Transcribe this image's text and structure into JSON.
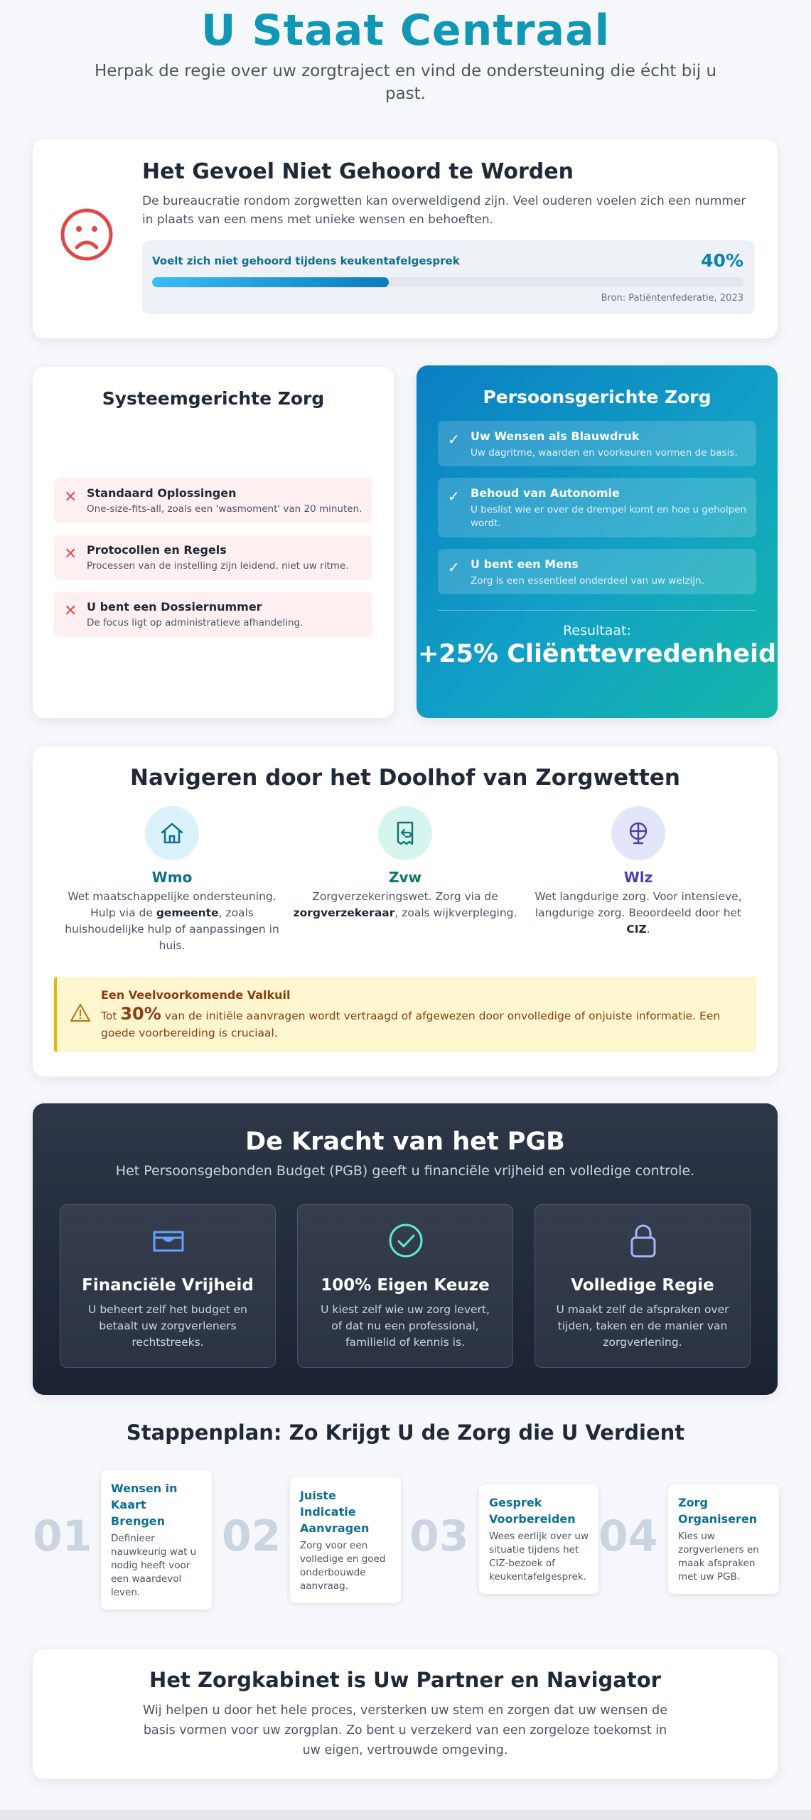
{
  "header": {
    "title": "U Staat Centraal",
    "subtitle": "Herpak de regie over uw zorgtraject en vind de ondersteuning die écht bij u past."
  },
  "problem": {
    "icon": "sad-face-icon",
    "title": "Het Gevoel Niet Gehoord te Worden",
    "text": "De bureaucratie rondom zorgwetten kan overweldigend zijn. Veel ouderen voelen zich een nummer in plaats van een mens met unieke wensen en behoeften.",
    "stat_label": "Voelt zich niet gehoord tijdens keukentafelgesprek",
    "stat_value": "40%",
    "stat_fraction": 0.4,
    "source": "Bron: Patiëntenfederatie, 2023"
  },
  "system": {
    "title": "Systeemgerichte Zorg",
    "items": [
      {
        "title": "Standaard Oplossingen",
        "desc": "One-size-fits-all, zoals een 'wasmoment' van 20 minuten."
      },
      {
        "title": "Protocollen en Regels",
        "desc": "Processen van de instelling zijn leidend, niet uw ritme."
      },
      {
        "title": "U bent een Dossiernummer",
        "desc": "De focus ligt op administratieve afhandeling."
      }
    ]
  },
  "person": {
    "title": "Persoonsgerichte Zorg",
    "items": [
      {
        "title": "Uw Wensen als Blauwdruk",
        "desc": "Uw dagritme, waarden en voorkeuren vormen de basis."
      },
      {
        "title": "Behoud van Autonomie",
        "desc": "U beslist wie er over de drempel komt en hoe u geholpen wordt."
      },
      {
        "title": "U bent een Mens",
        "desc": "Zorg is een essentieel onderdeel van uw welzijn."
      }
    ],
    "result_label": "Resultaat:",
    "result_value": "+25% Cliënttevredenheid"
  },
  "laws": {
    "title": "Navigeren door het Doolhof van Zorgwetten",
    "items": [
      {
        "name": "Wmo",
        "icon": "house-icon",
        "color": "#0e7490",
        "bg": "#dbf1fb",
        "pre": "Wet maatschappelijke ondersteuning. Hulp via de ",
        "bold": "gemeente",
        "post": ", zoals huishoudelijke hulp of aanpassingen in huis."
      },
      {
        "name": "Zvw",
        "icon": "insurance-receipt-icon",
        "color": "#0f766e",
        "bg": "#d6f5ee",
        "pre": "Zorgverzekeringswet. Zorg via de ",
        "bold": "zorgverzekeraar",
        "post": ", zoals wijkverpleging."
      },
      {
        "name": "Wlz",
        "icon": "long-term-care-icon",
        "color": "#4c3fb0",
        "bg": "#e3e5fb",
        "pre": "Wet langdurige zorg. Voor intensieve, langdurige zorg. Beoordeeld door het ",
        "bold": "CIZ",
        "post": "."
      }
    ],
    "pitfall_title": "Een Veelvoorkomende Valkuil",
    "pitfall_pre": "Tot ",
    "pitfall_pct": "30%",
    "pitfall_post": " van de initiële aanvragen wordt vertraagd of afgewezen door onvolledige of onjuiste informatie. Een goede voorbereiding is cruciaal."
  },
  "pgb": {
    "title": "De Kracht van het PGB",
    "subtitle": "Het Persoonsgebonden Budget (PGB) geeft u financiële vrijheid en volledige controle.",
    "cards": [
      {
        "title": "Financiële Vrijheid",
        "icon": "wallet-icon",
        "desc": "U beheert zelf het budget en betaalt uw zorgverleners rechtstreeks."
      },
      {
        "title": "100% Eigen Keuze",
        "icon": "check-circle-icon",
        "desc": "U kiest zelf wie uw zorg levert, of dat nu een professional, familielid of kennis is."
      },
      {
        "title": "Volledige Regie",
        "icon": "lock-icon",
        "desc": "U maakt zelf de afspraken over tijden, taken en de manier van zorgverlening."
      }
    ]
  },
  "steps": {
    "title": "Stappenplan: Zo Krijgt U de Zorg die U Verdient",
    "items": [
      {
        "num": "01",
        "title": "Wensen in Kaart Brengen",
        "desc": "Definieer nauwkeurig wat u nodig heeft voor een waardevol leven."
      },
      {
        "num": "02",
        "title": "Juiste Indicatie Aanvragen",
        "desc": "Zorg voor een volledige en goed onderbouwde aanvraag."
      },
      {
        "num": "03",
        "title": "Gesprek Voorbereiden",
        "desc": "Wees eerlijk over uw situatie tijdens het CIZ-bezoek of keukentafelgesprek."
      },
      {
        "num": "04",
        "title": "Zorg Organiseren",
        "desc": "Kies uw zorgverleners en maak afspraken met uw PGB."
      }
    ]
  },
  "closing": {
    "title": "Het Zorgkabinet is Uw Partner en Navigator",
    "text": "Wij helpen u door het hele proces, versterken uw stem en zorgen dat uw wensen de basis vormen voor uw zorgplan. Zo bent u verzekerd van een zorgeloze toekomst in uw eigen, vertrouwde omgeving."
  }
}
